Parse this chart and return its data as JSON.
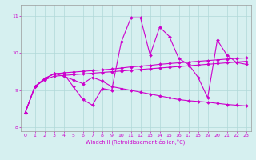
{
  "xlabel": "Windchill (Refroidissement éolien,°C)",
  "x": [
    0,
    1,
    2,
    3,
    4,
    5,
    6,
    7,
    8,
    9,
    10,
    11,
    12,
    13,
    14,
    15,
    16,
    17,
    18,
    19,
    20,
    21,
    22,
    23
  ],
  "line_volatile": [
    8.4,
    9.1,
    9.3,
    9.45,
    9.45,
    9.1,
    8.75,
    8.6,
    9.05,
    9.0,
    10.3,
    10.95,
    10.95,
    9.95,
    10.7,
    10.45,
    9.85,
    9.7,
    9.35,
    8.8,
    10.35,
    9.95,
    9.75,
    9.7
  ],
  "line_smooth_upper": [
    8.4,
    9.1,
    9.32,
    9.44,
    9.47,
    9.49,
    9.51,
    9.53,
    9.55,
    9.57,
    9.6,
    9.63,
    9.65,
    9.67,
    9.7,
    9.72,
    9.74,
    9.76,
    9.78,
    9.8,
    9.82,
    9.84,
    9.86,
    9.87
  ],
  "line_smooth_lower": [
    8.4,
    9.1,
    9.28,
    9.38,
    9.4,
    9.42,
    9.44,
    9.46,
    9.48,
    9.5,
    9.52,
    9.54,
    9.56,
    9.58,
    9.6,
    9.62,
    9.64,
    9.66,
    9.68,
    9.7,
    9.72,
    9.74,
    9.76,
    9.78
  ],
  "line_declining": [
    8.4,
    9.1,
    9.3,
    9.45,
    9.38,
    9.28,
    9.18,
    9.35,
    9.25,
    9.1,
    9.05,
    9.0,
    8.95,
    8.9,
    8.85,
    8.8,
    8.75,
    8.72,
    8.7,
    8.68,
    8.65,
    8.62,
    8.6,
    8.58
  ],
  "line_color": "#cc00cc",
  "bg_color": "#d6f0f0",
  "grid_color": "#b0d8d8",
  "ylim": [
    7.9,
    11.3
  ],
  "yticks": [
    8,
    9,
    10,
    11
  ],
  "xticks": [
    0,
    1,
    2,
    3,
    4,
    5,
    6,
    7,
    8,
    9,
    10,
    11,
    12,
    13,
    14,
    15,
    16,
    17,
    18,
    19,
    20,
    21,
    22,
    23
  ]
}
